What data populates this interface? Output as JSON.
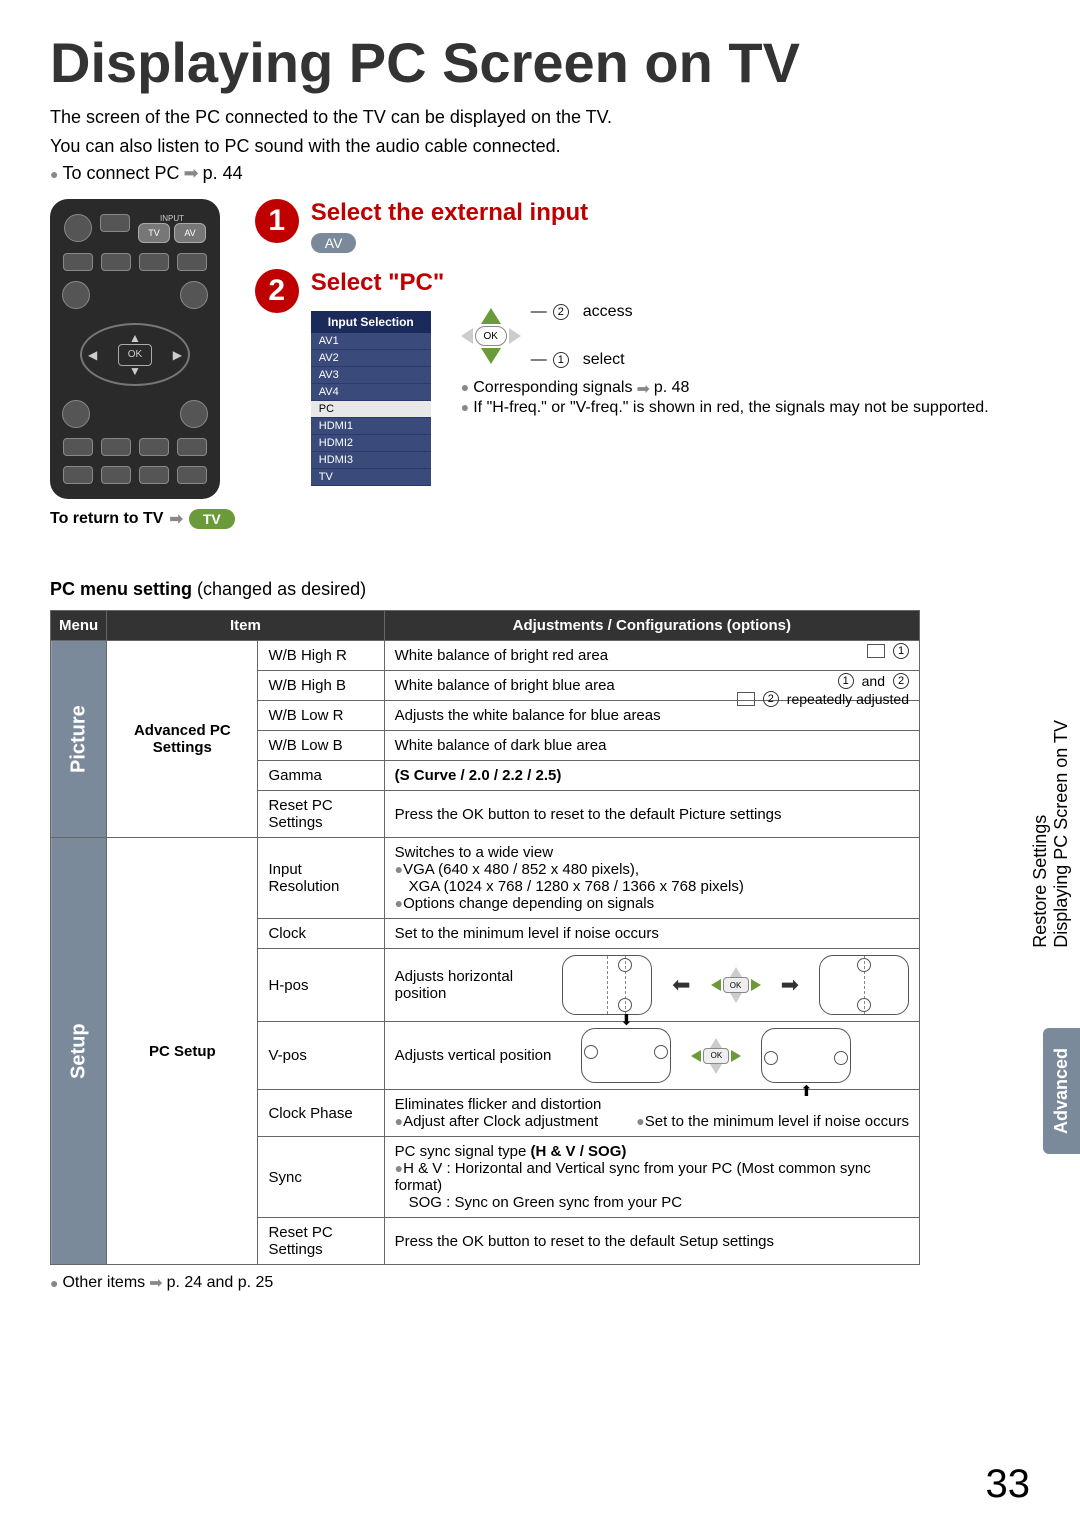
{
  "title": "Displaying PC Screen on TV",
  "intro_line1": "The screen of the PC connected to the TV can be displayed on the TV.",
  "intro_line2": "You can also listen to PC sound with the audio cable connected.",
  "intro_bullet": "To connect PC",
  "intro_bullet_ref": "p. 44",
  "remote": {
    "input_label": "INPUT",
    "tv_btn": "TV",
    "av_btn": "AV",
    "ok": "OK"
  },
  "return_text": "To return to TV",
  "return_btn": "TV",
  "step1": {
    "num": "1",
    "title": "Select the external input",
    "pill": "AV"
  },
  "step2": {
    "num": "2",
    "title": "Select \"PC\"",
    "menu_title": "Input Selection",
    "menu_items": [
      "AV1",
      "AV2",
      "AV3",
      "AV4",
      "PC",
      "HDMI1",
      "HDMI2",
      "HDMI3",
      "TV"
    ],
    "selected": "PC",
    "access_label": "access",
    "select_label": "select",
    "note1_a": "Corresponding signals",
    "note1_b": "p. 48",
    "note2": "If \"H-freq.\" or \"V-freq.\" is shown in red, the signals may not be supported.",
    "ok": "OK",
    "circ1": "1",
    "circ2": "2"
  },
  "section_title_bold": "PC menu setting",
  "section_title_rest": " (changed as desired)",
  "table": {
    "headers": {
      "menu": "Menu",
      "item": "Item",
      "adj": "Adjustments / Configurations (options)"
    },
    "picture_label": "Picture",
    "setup_label": "Setup",
    "picture_group": "Advanced PC Settings",
    "setup_group": "PC Setup",
    "picture_rows": [
      {
        "item": "W/B High R",
        "adj": "White balance of bright red area"
      },
      {
        "item": "W/B High B",
        "adj": "White balance of bright blue area"
      },
      {
        "item": "W/B Low R",
        "adj": "Adjusts the white balance for blue areas"
      },
      {
        "item": "W/B Low B",
        "adj": "White balance of dark blue area"
      },
      {
        "item": "Gamma",
        "adj_bold": "(S Curve / 2.0 / 2.2 / 2.5)"
      },
      {
        "item": "Reset PC Settings",
        "adj": "Press the OK button to reset to the default Picture settings"
      }
    ],
    "wb_note_line1a": "and",
    "wb_note_line2": "repeatedly adjusted",
    "setup_rows": {
      "input_res": {
        "item": "Input Resolution",
        "l1": "Switches to a wide view",
        "l2": "VGA (640 x 480 / 852 x 480 pixels),",
        "l3": "XGA (1024 x 768 / 1280 x 768 / 1366 x 768 pixels)",
        "l4": "Options change depending on signals"
      },
      "clock": {
        "item": "Clock",
        "adj": "Set to the minimum level if noise occurs"
      },
      "hpos": {
        "item": "H-pos",
        "adj": "Adjusts horizontal position"
      },
      "vpos": {
        "item": "V-pos",
        "adj": "Adjusts vertical position"
      },
      "clock_phase": {
        "item": "Clock Phase",
        "l1": "Eliminates flicker and distortion",
        "l2": "Adjust after Clock adjustment",
        "l3": "Set to the minimum level if noise occurs"
      },
      "sync": {
        "item": "Sync",
        "l1a": "PC sync signal type ",
        "l1b": "(H & V / SOG)",
        "l2": "H & V  : Horizontal and Vertical sync from your PC (Most common sync format)",
        "l3": "SOG    : Sync on Green sync from your PC"
      },
      "reset": {
        "item": "Reset PC Settings",
        "adj": "Press the OK button to reset to the default Setup settings"
      }
    },
    "ok_mini": "OK"
  },
  "footnote_a": "Other items",
  "footnote_b": "p. 24 and p. 25",
  "side_tab1_line1": "Restore Settings",
  "side_tab1_line2": "Displaying PC Screen on TV",
  "side_tab2": "Advanced",
  "page_num": "33",
  "colors": {
    "accent_red": "#c00000",
    "header_bg": "#333333",
    "vcell_bg": "#7a8a9a",
    "pill_av": "#7a8a9a",
    "pill_tv": "#6a9a3a"
  }
}
